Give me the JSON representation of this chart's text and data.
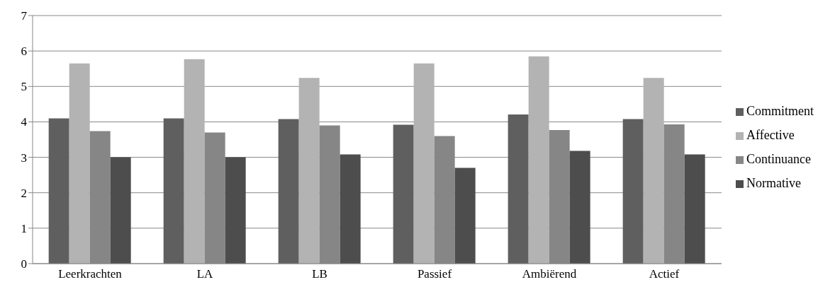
{
  "chart_data": {
    "type": "bar",
    "categories": [
      "Leerkrachten",
      "LA",
      "LB",
      "Passief",
      "Ambiërend",
      "Actief"
    ],
    "series": [
      {
        "name": "Commitment",
        "color": "#5f5f5f",
        "values": [
          4.1,
          4.1,
          4.08,
          3.92,
          4.21,
          4.08
        ]
      },
      {
        "name": "Affective",
        "color": "#b3b3b3",
        "values": [
          5.65,
          5.77,
          5.24,
          5.65,
          5.85,
          5.24
        ]
      },
      {
        "name": "Continuance",
        "color": "#868686",
        "values": [
          3.74,
          3.7,
          3.9,
          3.6,
          3.77,
          3.93
        ]
      },
      {
        "name": "Normative",
        "color": "#4d4d4d",
        "values": [
          3.0,
          3.0,
          3.08,
          2.7,
          3.18,
          3.08
        ]
      }
    ],
    "ylim": [
      0,
      7
    ],
    "yticks": [
      0,
      1,
      2,
      3,
      4,
      5,
      6,
      7
    ],
    "grid": "y",
    "legend": "right"
  }
}
